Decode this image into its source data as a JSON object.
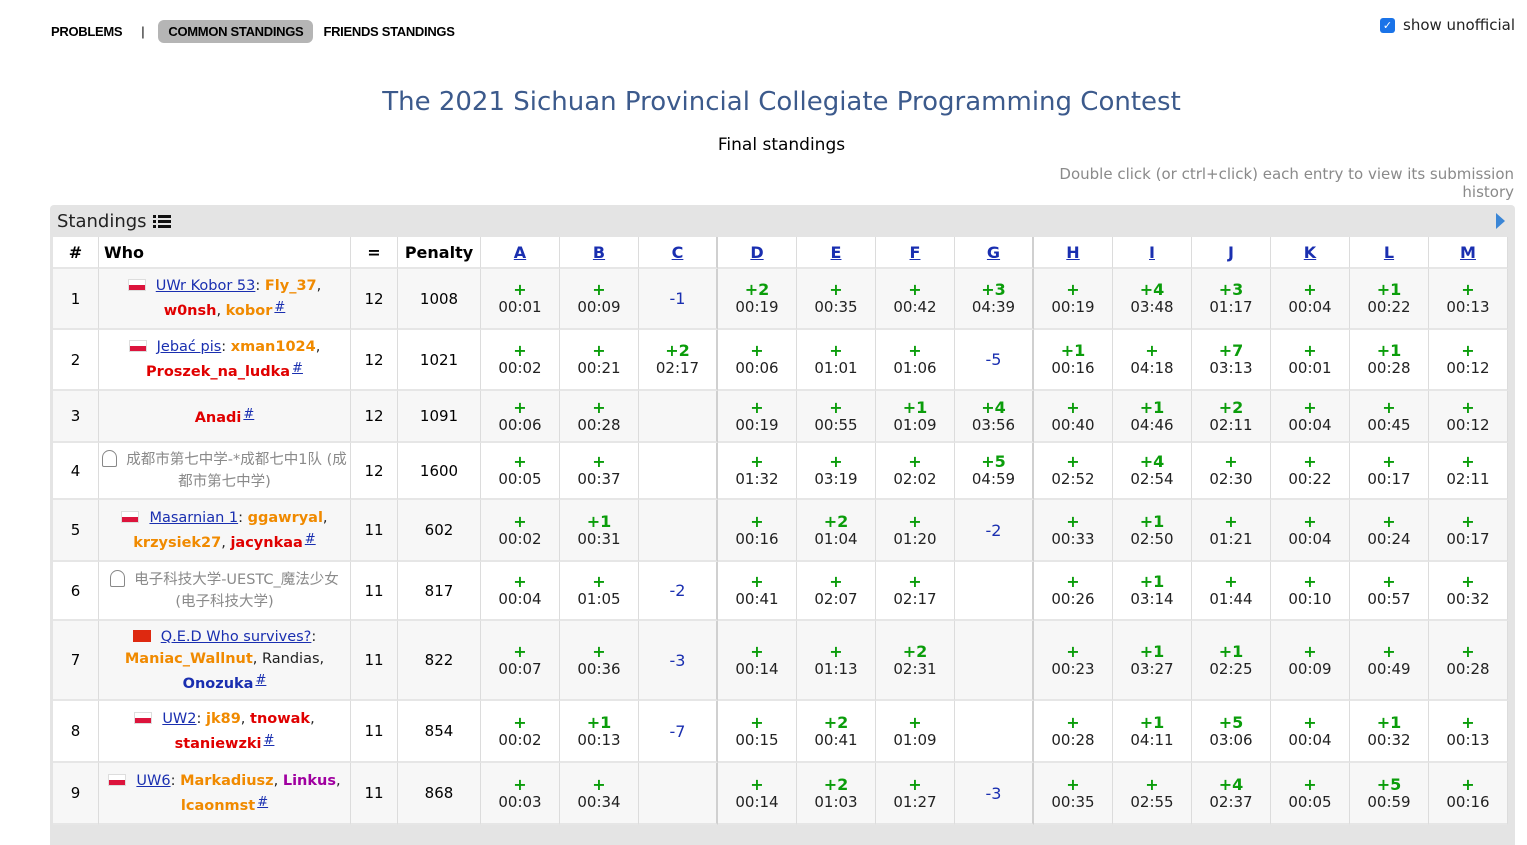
{
  "nav": {
    "problems": "PROBLEMS",
    "separator": "|",
    "common_standings": "COMMON STANDINGS",
    "friends_standings": "FRIENDS STANDINGS"
  },
  "show_unofficial": {
    "label": "show unofficial",
    "checked": true,
    "check_glyph": "✓"
  },
  "contest": {
    "title": "The 2021 Sichuan Provincial Collegiate Programming Contest",
    "subtitle": "Final standings",
    "hint": "Double click (or ctrl+click) each entry to view its submission history"
  },
  "panel": {
    "title": "Standings"
  },
  "table": {
    "headers": {
      "rank": "#",
      "who": "Who",
      "solved": "=",
      "penalty": "Penalty"
    },
    "problems": [
      "A",
      "B",
      "C",
      "D",
      "E",
      "F",
      "G",
      "H",
      "I",
      "J",
      "K",
      "L",
      "M"
    ]
  },
  "rows": [
    {
      "rank": "1",
      "flag": "pl",
      "solved": "12",
      "penalty": "1008",
      "who": [
        {
          "t": "UWr Kobor 53",
          "c": "team"
        },
        {
          "t": ": ",
          "c": "plain"
        },
        {
          "t": "Fly_37",
          "c": "orange"
        },
        {
          "t": ",",
          "c": "plain"
        },
        {
          "t": "\n",
          "c": "br"
        },
        {
          "t": "w0nsh",
          "c": "red"
        },
        {
          "t": ", ",
          "c": "plain"
        },
        {
          "t": "kobor",
          "c": "orange"
        }
      ],
      "cells": [
        [
          "+",
          "00:01"
        ],
        [
          "+",
          "00:09"
        ],
        [
          "-1",
          ""
        ],
        [
          "+2",
          "00:19"
        ],
        [
          "+",
          "00:35"
        ],
        [
          "+",
          "00:42"
        ],
        [
          "+3",
          "04:39"
        ],
        [
          "+",
          "00:19"
        ],
        [
          "+4",
          "03:48"
        ],
        [
          "+3",
          "01:17"
        ],
        [
          "+",
          "00:04"
        ],
        [
          "+1",
          "00:22"
        ],
        [
          "+",
          "00:13"
        ]
      ]
    },
    {
      "rank": "2",
      "flag": "pl",
      "solved": "12",
      "penalty": "1021",
      "who": [
        {
          "t": "Jebać pis",
          "c": "team"
        },
        {
          "t": ": ",
          "c": "plain"
        },
        {
          "t": "xman1024",
          "c": "orange"
        },
        {
          "t": ",",
          "c": "plain"
        },
        {
          "t": "\n",
          "c": "br"
        },
        {
          "t": "Proszek_na_ludka",
          "c": "red"
        }
      ],
      "cells": [
        [
          "+",
          "00:02"
        ],
        [
          "+",
          "00:21"
        ],
        [
          "+2",
          "02:17"
        ],
        [
          "+",
          "00:06"
        ],
        [
          "+",
          "01:01"
        ],
        [
          "+",
          "01:06"
        ],
        [
          "-5",
          ""
        ],
        [
          "+1",
          "00:16"
        ],
        [
          "+",
          "04:18"
        ],
        [
          "+7",
          "03:13"
        ],
        [
          "+",
          "00:01"
        ],
        [
          "+1",
          "00:28"
        ],
        [
          "+",
          "00:12"
        ]
      ]
    },
    {
      "rank": "3",
      "flag": "",
      "solved": "12",
      "penalty": "1091",
      "who": [
        {
          "t": "Anadi",
          "c": "red"
        }
      ],
      "cells": [
        [
          "+",
          "00:06"
        ],
        [
          "+",
          "00:28"
        ],
        [
          "",
          ""
        ],
        [
          "+",
          "00:19"
        ],
        [
          "+",
          "00:55"
        ],
        [
          "+1",
          "01:09"
        ],
        [
          "+4",
          "03:56"
        ],
        [
          "+",
          "00:40"
        ],
        [
          "+1",
          "04:46"
        ],
        [
          "+2",
          "02:11"
        ],
        [
          "+",
          "00:04"
        ],
        [
          "+",
          "00:45"
        ],
        [
          "+",
          "00:12"
        ]
      ]
    },
    {
      "rank": "4",
      "flag": "ghost",
      "solved": "12",
      "penalty": "1600",
      "who": [
        {
          "t": "成都市第七中学-*成都七中1队 (成都市第七中学)",
          "c": "unoff"
        }
      ],
      "cells": [
        [
          "+",
          "00:05"
        ],
        [
          "+",
          "00:37"
        ],
        [
          "",
          ""
        ],
        [
          "+",
          "01:32"
        ],
        [
          "+",
          "03:19"
        ],
        [
          "+",
          "02:02"
        ],
        [
          "+5",
          "04:59"
        ],
        [
          "+",
          "02:52"
        ],
        [
          "+4",
          "02:54"
        ],
        [
          "+",
          "02:30"
        ],
        [
          "+",
          "00:22"
        ],
        [
          "+",
          "00:17"
        ],
        [
          "+",
          "02:11"
        ]
      ]
    },
    {
      "rank": "5",
      "flag": "pl",
      "solved": "11",
      "penalty": "602",
      "who": [
        {
          "t": "Masarnian 1",
          "c": "team"
        },
        {
          "t": ": ",
          "c": "plain"
        },
        {
          "t": "ggawryal",
          "c": "orange"
        },
        {
          "t": ",",
          "c": "plain"
        },
        {
          "t": "\n",
          "c": "br"
        },
        {
          "t": "krzysiek27",
          "c": "orange"
        },
        {
          "t": ", ",
          "c": "plain"
        },
        {
          "t": "jacynkaa",
          "c": "red"
        }
      ],
      "cells": [
        [
          "+",
          "00:02"
        ],
        [
          "+1",
          "00:31"
        ],
        [
          "",
          ""
        ],
        [
          "+",
          "00:16"
        ],
        [
          "+2",
          "01:04"
        ],
        [
          "+",
          "01:20"
        ],
        [
          "-2",
          ""
        ],
        [
          "+",
          "00:33"
        ],
        [
          "+1",
          "02:50"
        ],
        [
          "+",
          "01:21"
        ],
        [
          "+",
          "00:04"
        ],
        [
          "+",
          "00:24"
        ],
        [
          "+",
          "00:17"
        ]
      ]
    },
    {
      "rank": "6",
      "flag": "ghost",
      "solved": "11",
      "penalty": "817",
      "who": [
        {
          "t": "电子科技大学-UESTC_魔法少女 (电子科技大学)",
          "c": "unoff"
        }
      ],
      "cells": [
        [
          "+",
          "00:04"
        ],
        [
          "+",
          "01:05"
        ],
        [
          "-2",
          ""
        ],
        [
          "+",
          "00:41"
        ],
        [
          "+",
          "02:07"
        ],
        [
          "+",
          "02:17"
        ],
        [
          "",
          ""
        ],
        [
          "+",
          "00:26"
        ],
        [
          "+1",
          "03:14"
        ],
        [
          "+",
          "01:44"
        ],
        [
          "+",
          "00:10"
        ],
        [
          "+",
          "00:57"
        ],
        [
          "+",
          "00:32"
        ]
      ]
    },
    {
      "rank": "7",
      "flag": "cn",
      "solved": "11",
      "penalty": "822",
      "who": [
        {
          "t": "Q.E.D Who survives?",
          "c": "team"
        },
        {
          "t": ":",
          "c": "plain"
        },
        {
          "t": "\n",
          "c": "br"
        },
        {
          "t": "Maniac_Wallnut",
          "c": "orange"
        },
        {
          "t": ", Randias,",
          "c": "plain"
        },
        {
          "t": "\n",
          "c": "br"
        },
        {
          "t": "Onozuka",
          "c": "blue"
        }
      ],
      "cells": [
        [
          "+",
          "00:07"
        ],
        [
          "+",
          "00:36"
        ],
        [
          "-3",
          ""
        ],
        [
          "+",
          "00:14"
        ],
        [
          "+",
          "01:13"
        ],
        [
          "+2",
          "02:31"
        ],
        [
          "",
          ""
        ],
        [
          "+",
          "00:23"
        ],
        [
          "+1",
          "03:27"
        ],
        [
          "+1",
          "02:25"
        ],
        [
          "+",
          "00:09"
        ],
        [
          "+",
          "00:49"
        ],
        [
          "+",
          "00:28"
        ]
      ]
    },
    {
      "rank": "8",
      "flag": "pl",
      "solved": "11",
      "penalty": "854",
      "who": [
        {
          "t": "UW2",
          "c": "team"
        },
        {
          "t": ": ",
          "c": "plain"
        },
        {
          "t": "jk89",
          "c": "orange"
        },
        {
          "t": ", ",
          "c": "plain"
        },
        {
          "t": "tnowak",
          "c": "red"
        },
        {
          "t": ",",
          "c": "plain"
        },
        {
          "t": "\n",
          "c": "br"
        },
        {
          "t": "staniewzki",
          "c": "red"
        }
      ],
      "cells": [
        [
          "+",
          "00:02"
        ],
        [
          "+1",
          "00:13"
        ],
        [
          "-7",
          ""
        ],
        [
          "+",
          "00:15"
        ],
        [
          "+2",
          "00:41"
        ],
        [
          "+",
          "01:09"
        ],
        [
          "",
          ""
        ],
        [
          "+",
          "00:28"
        ],
        [
          "+1",
          "04:11"
        ],
        [
          "+5",
          "03:06"
        ],
        [
          "+",
          "00:04"
        ],
        [
          "+1",
          "00:32"
        ],
        [
          "+",
          "00:13"
        ]
      ]
    },
    {
      "rank": "9",
      "flag": "pl",
      "solved": "11",
      "penalty": "868",
      "who": [
        {
          "t": "UW6",
          "c": "team"
        },
        {
          "t": ": ",
          "c": "plain"
        },
        {
          "t": "Markadiusz",
          "c": "orange"
        },
        {
          "t": ", ",
          "c": "plain"
        },
        {
          "t": "Linkus",
          "c": "purple"
        },
        {
          "t": ",",
          "c": "plain"
        },
        {
          "t": "\n",
          "c": "br"
        },
        {
          "t": "lcaonmst",
          "c": "orange"
        }
      ],
      "cells": [
        [
          "+",
          "00:03"
        ],
        [
          "+",
          "00:34"
        ],
        [
          "",
          ""
        ],
        [
          "+",
          "00:14"
        ],
        [
          "+2",
          "01:03"
        ],
        [
          "+",
          "01:27"
        ],
        [
          "-3",
          ""
        ],
        [
          "+",
          "00:35"
        ],
        [
          "+",
          "02:55"
        ],
        [
          "+4",
          "02:37"
        ],
        [
          "+",
          "00:05"
        ],
        [
          "+5",
          "00:59"
        ],
        [
          "+",
          "00:16"
        ]
      ]
    }
  ],
  "hash_glyph": "#",
  "colors": {
    "accept": "#0b9d0b",
    "reject": "#1a2fb0",
    "title": "#3c5a8c",
    "orange": "#f08a00",
    "red": "#e00000",
    "purple": "#a000a0"
  }
}
